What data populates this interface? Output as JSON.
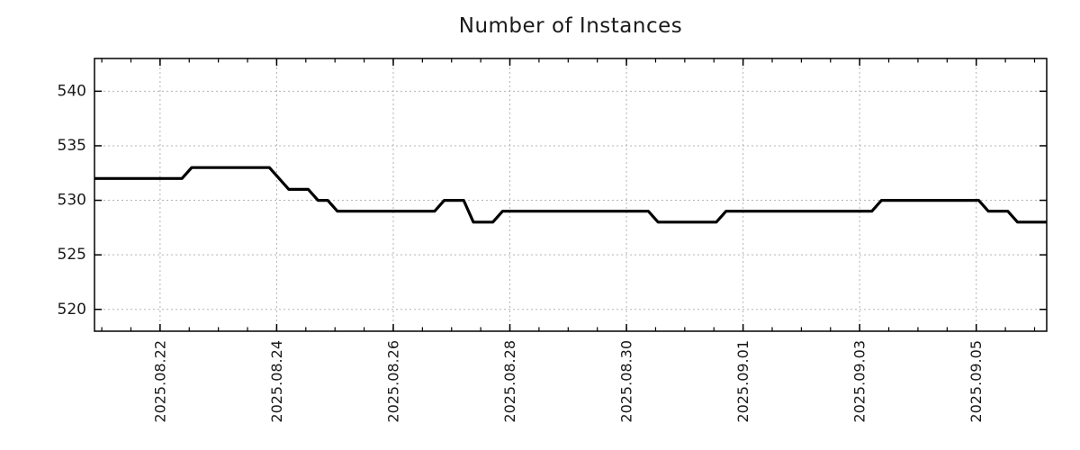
{
  "page": {
    "background": "#ffffff"
  },
  "chart_data": {
    "type": "line",
    "title": "Number of Instances",
    "xlabel": "",
    "ylabel": "",
    "legend": "none",
    "grid": true,
    "grid_color": "#b3b3b3",
    "axis_color": "#000000",
    "label_color": "#1a1a1a",
    "ylim": [
      518,
      543
    ],
    "yticks": [
      520,
      525,
      530,
      535,
      540
    ],
    "xlim": [
      "2025-08-20 21:00",
      "2025-09-06 05:00"
    ],
    "xticks": [
      {
        "t": "2025-08-22 00:00",
        "label": "2025.08.22"
      },
      {
        "t": "2025-08-24 00:00",
        "label": "2025.08.24"
      },
      {
        "t": "2025-08-26 00:00",
        "label": "2025.08.26"
      },
      {
        "t": "2025-08-28 00:00",
        "label": "2025.08.28"
      },
      {
        "t": "2025-08-30 00:00",
        "label": "2025.08.30"
      },
      {
        "t": "2025-09-01 00:00",
        "label": "2025.09.01"
      },
      {
        "t": "2025-09-03 00:00",
        "label": "2025.09.03"
      },
      {
        "t": "2025-09-05 00:00",
        "label": "2025.09.05"
      }
    ],
    "x_minor_start": "2025-08-21 00:00",
    "x_minor_step_hours": 12,
    "series": [
      {
        "name": "instances",
        "color": "#000000",
        "line_width": 3.2,
        "points": [
          [
            "2025-08-20 21:00",
            532
          ],
          [
            "2025-08-22 09:00",
            532
          ],
          [
            "2025-08-22 13:00",
            533
          ],
          [
            "2025-08-23 21:00",
            533
          ],
          [
            "2025-08-24 01:00",
            532
          ],
          [
            "2025-08-24 05:00",
            531
          ],
          [
            "2025-08-24 13:00",
            531
          ],
          [
            "2025-08-24 17:00",
            530
          ],
          [
            "2025-08-24 21:00",
            530
          ],
          [
            "2025-08-25 01:00",
            529
          ],
          [
            "2025-08-26 17:00",
            529
          ],
          [
            "2025-08-26 21:00",
            530
          ],
          [
            "2025-08-27 05:00",
            530
          ],
          [
            "2025-08-27 09:00",
            528
          ],
          [
            "2025-08-27 17:00",
            528
          ],
          [
            "2025-08-27 21:00",
            529
          ],
          [
            "2025-08-30 09:00",
            529
          ],
          [
            "2025-08-30 13:00",
            528
          ],
          [
            "2025-08-31 13:00",
            528
          ],
          [
            "2025-08-31 17:00",
            529
          ],
          [
            "2025-09-03 05:00",
            529
          ],
          [
            "2025-09-03 09:00",
            530
          ],
          [
            "2025-09-05 01:00",
            530
          ],
          [
            "2025-09-05 05:00",
            529
          ],
          [
            "2025-09-05 13:00",
            529
          ],
          [
            "2025-09-05 17:00",
            528
          ],
          [
            "2025-09-06 05:00",
            528
          ]
        ]
      }
    ]
  }
}
